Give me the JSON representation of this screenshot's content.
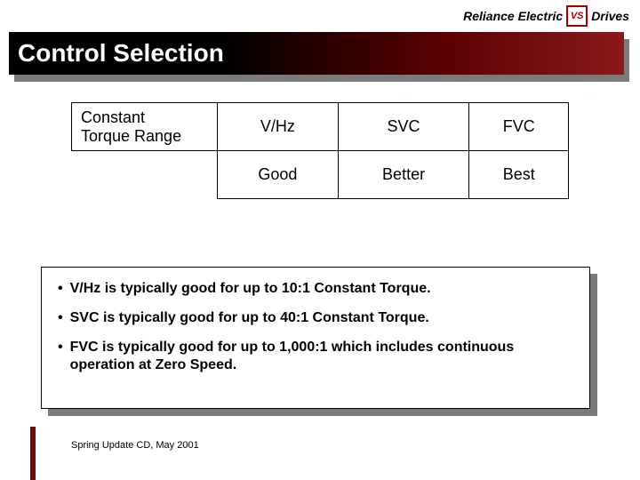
{
  "brand": {
    "left": "Reliance Electric",
    "logo_text": "VS",
    "right": "Drives",
    "logo_border_color": "#a00000"
  },
  "title": "Control Selection",
  "title_gradient": {
    "from": "#000000",
    "mid": "#5a0000",
    "to": "#8b1a1a"
  },
  "shadow_color": "#7a7a7a",
  "table": {
    "row_header": "Constant\nTorque Range",
    "columns": [
      "V/Hz",
      "SVC",
      "FVC"
    ],
    "ratings": [
      "Good",
      "Better",
      "Best"
    ],
    "border_color": "#000000",
    "cell_fontsize": 18
  },
  "bullets": [
    "V/Hz is typically good for up to 10:1 Constant Torque.",
    "SVC is typically good for up to 40:1 Constant Torque.",
    "FVC is typically good for up to 1,000:1 which includes continuous operation at Zero Speed."
  ],
  "bullet_fontsize": 16,
  "footer": "Spring Update CD, May 2001",
  "stripe_color": "#6a0f0f"
}
